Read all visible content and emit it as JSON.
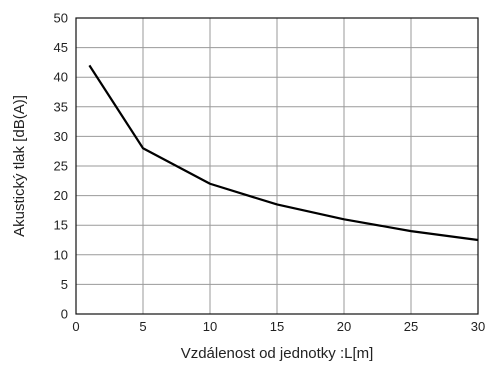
{
  "chart_data": {
    "type": "line",
    "xlabel": "Vzdálenost od jednotky :L[m]",
    "ylabel": "Akustický tlak [dB(A)]",
    "xlim": [
      0,
      30
    ],
    "ylim": [
      0,
      50
    ],
    "x_ticks": [
      0,
      5,
      10,
      15,
      20,
      25,
      30
    ],
    "y_ticks": [
      0,
      5,
      10,
      15,
      20,
      25,
      30,
      35,
      40,
      45,
      50
    ],
    "grid": true,
    "legend": "none",
    "line_color": "#000000",
    "series": [
      {
        "x": [
          1,
          5,
          10,
          15,
          20,
          25,
          30
        ],
        "y": [
          42,
          28,
          22,
          18.5,
          16,
          14,
          12.5
        ]
      }
    ]
  }
}
